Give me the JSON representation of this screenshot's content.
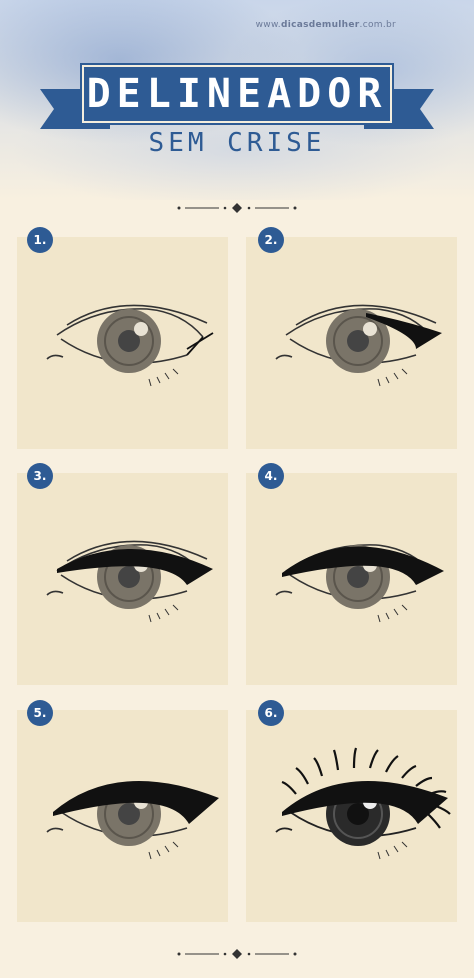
{
  "site": {
    "url_prefix": "www.",
    "url_brand": "dicasdemulher",
    "url_suffix": ".com.br"
  },
  "banner": {
    "title": "DELINEADOR",
    "subtitle": "SEM CRISE"
  },
  "steps": [
    {
      "number": "1."
    },
    {
      "number": "2."
    },
    {
      "number": "3."
    },
    {
      "number": "4."
    },
    {
      "number": "5."
    },
    {
      "number": "6."
    }
  ],
  "colors": {
    "accent": "#2e5b94",
    "panel": "#f1e6cb",
    "page": "#f8f0e0"
  }
}
